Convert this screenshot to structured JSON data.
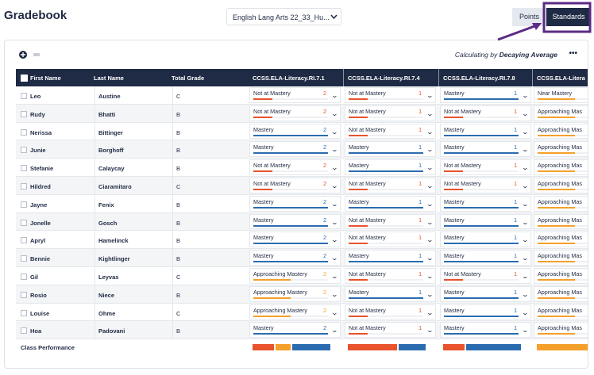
{
  "header": {
    "title": "Gradebook",
    "course": "English Lang Arts 22_33_Hu..."
  },
  "toggle": {
    "points": "Points",
    "standards": "Standards"
  },
  "toolbar": {
    "calc_prefix": "Calculating by",
    "calc_method": "Decaying Average",
    "more": "•••"
  },
  "table": {
    "columns": [
      "First Name",
      "Last Name",
      "Total Grade"
    ],
    "standards": [
      "CCSS.ELA-Literacy.RI.7.1",
      "CCSS.ELA-Literacy.RI.7.4",
      "CCSS.ELA-Literacy.RI.7.8",
      "CCSS.ELA-Litera"
    ],
    "rows": [
      {
        "first": "Leo",
        "last": "Austine",
        "grade": "C",
        "scores": [
          {
            "status": "Not at Mastery",
            "level": 2
          },
          {
            "status": "Not at Mastery",
            "level": 1
          },
          {
            "status": "Mastery",
            "level": 1
          },
          {
            "status": "Near Mastery"
          }
        ]
      },
      {
        "first": "Rudy",
        "last": "Bhatti",
        "grade": "B",
        "scores": [
          {
            "status": "Not at Mastery",
            "level": 2
          },
          {
            "status": "Not at Mastery",
            "level": 1
          },
          {
            "status": "Not at Mastery",
            "level": 1
          },
          {
            "status": "Approaching Mas"
          }
        ]
      },
      {
        "first": "Nerissa",
        "last": "Bittinger",
        "grade": "B",
        "scores": [
          {
            "status": "Mastery",
            "level": 2
          },
          {
            "status": "Not at Mastery",
            "level": 1
          },
          {
            "status": "Mastery",
            "level": 1
          },
          {
            "status": "Approaching Mas"
          }
        ]
      },
      {
        "first": "Junie",
        "last": "Borghoff",
        "grade": "B",
        "scores": [
          {
            "status": "Mastery",
            "level": 2
          },
          {
            "status": "Mastery",
            "level": 1
          },
          {
            "status": "Mastery",
            "level": 1
          },
          {
            "status": "Approaching Mas"
          }
        ]
      },
      {
        "first": "Stefanie",
        "last": "Calaycay",
        "grade": "B",
        "scores": [
          {
            "status": "Not at Mastery",
            "level": 2
          },
          {
            "status": "Mastery",
            "level": 1
          },
          {
            "status": "Not at Mastery",
            "level": 1
          },
          {
            "status": "Approaching Mas"
          }
        ]
      },
      {
        "first": "Hildred",
        "last": "Ciaramitaro",
        "grade": "C",
        "scores": [
          {
            "status": "Not at Mastery",
            "level": 2
          },
          {
            "status": "Not at Mastery",
            "level": 1
          },
          {
            "status": "Not at Mastery",
            "level": 1
          },
          {
            "status": "Approaching Mas"
          }
        ]
      },
      {
        "first": "Jayne",
        "last": "Fenix",
        "grade": "B",
        "scores": [
          {
            "status": "Mastery",
            "level": 2
          },
          {
            "status": "Mastery",
            "level": 1
          },
          {
            "status": "Mastery",
            "level": 1
          },
          {
            "status": "Approaching Mas"
          }
        ]
      },
      {
        "first": "Jonelle",
        "last": "Gosch",
        "grade": "B",
        "scores": [
          {
            "status": "Mastery",
            "level": 2
          },
          {
            "status": "Not at Mastery",
            "level": 1
          },
          {
            "status": "Mastery",
            "level": 1
          },
          {
            "status": "Approaching Mas"
          }
        ]
      },
      {
        "first": "Apryl",
        "last": "Hamelinck",
        "grade": "B",
        "scores": [
          {
            "status": "Mastery",
            "level": 2
          },
          {
            "status": "Not at Mastery",
            "level": 1
          },
          {
            "status": "Mastery",
            "level": 1
          },
          {
            "status": "Approaching Mas"
          }
        ]
      },
      {
        "first": "Bennie",
        "last": "Kightlinger",
        "grade": "B",
        "scores": [
          {
            "status": "Mastery",
            "level": 2
          },
          {
            "status": "Mastery",
            "level": 1
          },
          {
            "status": "Mastery",
            "level": 1
          },
          {
            "status": "Approaching Mas"
          }
        ]
      },
      {
        "first": "Gil",
        "last": "Leyvas",
        "grade": "C",
        "scores": [
          {
            "status": "Approaching Mastery",
            "level": 2
          },
          {
            "status": "Not at Mastery",
            "level": 1
          },
          {
            "status": "Not at Mastery",
            "level": 1
          },
          {
            "status": "Approaching Mas"
          }
        ]
      },
      {
        "first": "Rosio",
        "last": "Niece",
        "grade": "B",
        "scores": [
          {
            "status": "Approaching Mastery",
            "level": 2
          },
          {
            "status": "Mastery",
            "level": 1
          },
          {
            "status": "Mastery",
            "level": 1
          },
          {
            "status": "Approaching Mas"
          }
        ]
      },
      {
        "first": "Louise",
        "last": "Ohme",
        "grade": "C",
        "scores": [
          {
            "status": "Approaching Mastery",
            "level": 2
          },
          {
            "status": "Not at Mastery",
            "level": 1
          },
          {
            "status": "Mastery",
            "level": 1
          },
          {
            "status": "Approaching Mas"
          }
        ]
      },
      {
        "first": "Hoa",
        "last": "Padovani",
        "grade": "B",
        "scores": [
          {
            "status": "Mastery",
            "level": 2
          },
          {
            "status": "Not at Mastery",
            "level": 1
          },
          {
            "status": "Mastery",
            "level": 1
          },
          {
            "status": "Approaching Mas"
          }
        ]
      }
    ],
    "footer": "Class Performance"
  }
}
